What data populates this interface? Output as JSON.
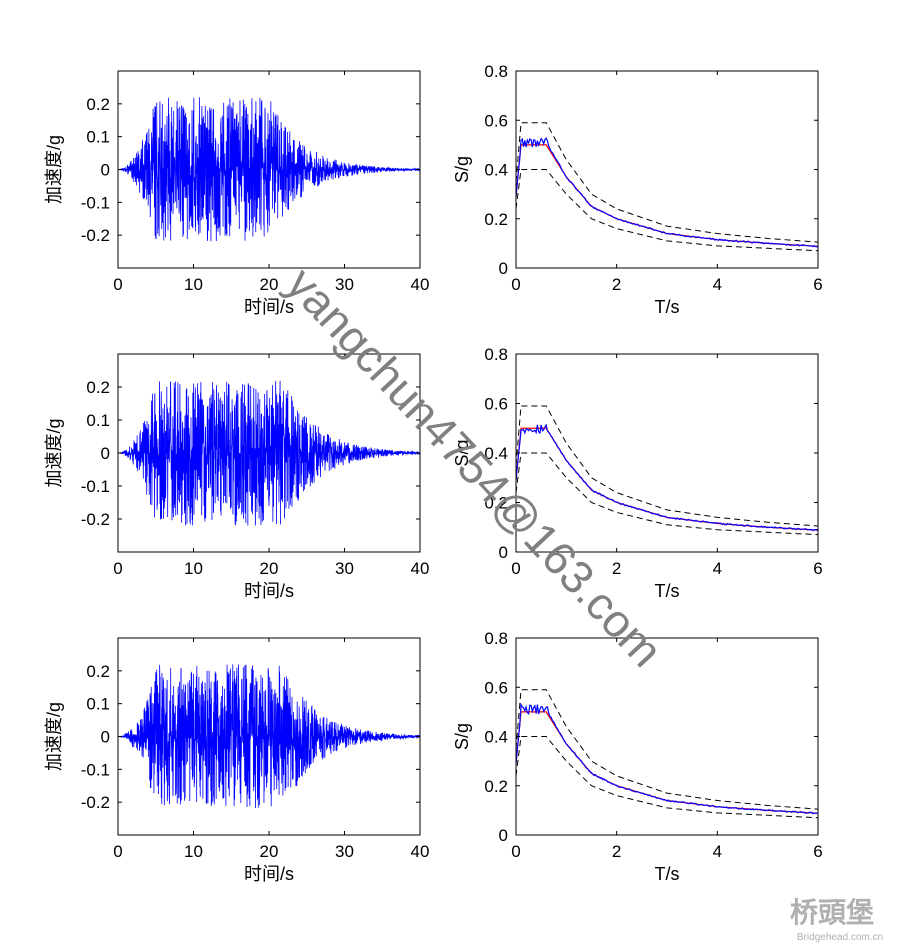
{
  "chart_data": [
    {
      "type": "line",
      "xlabel": "时间/s",
      "ylabel": "加速度/g",
      "xlim": [
        0,
        40
      ],
      "ylim": [
        -0.3,
        0.3
      ],
      "xticks": [
        0,
        10,
        20,
        30,
        40
      ],
      "yticks": [
        -0.2,
        -0.1,
        0,
        0.1,
        0.2
      ],
      "xtick_labels": [
        "0",
        "10",
        "20",
        "30",
        "40"
      ],
      "ytick_labels": [
        "-0.2",
        "-0.1",
        "0",
        "0.1",
        "0.2"
      ],
      "grid": false,
      "series": [
        {
          "color": "#0000ff",
          "peak_abs": 0.22,
          "strong_phase_s": [
            5,
            20
          ],
          "duration_s": 40
        }
      ]
    },
    {
      "type": "line",
      "xlabel": "T/s",
      "ylabel": "S/g",
      "xlim": [
        0,
        6
      ],
      "ylim": [
        0,
        0.8
      ],
      "xticks": [
        0,
        2,
        4,
        6
      ],
      "yticks": [
        0,
        0.2,
        0.4,
        0.6,
        0.8
      ],
      "xtick_labels": [
        "0",
        "2",
        "4",
        "6"
      ],
      "ytick_labels": [
        "0",
        "0.2",
        "0.4",
        "0.6",
        "0.8"
      ],
      "grid": false,
      "series": [
        {
          "style": "dashed",
          "color": "#000000",
          "x": [
            0,
            0.1,
            0.6,
            1,
            1.5,
            2,
            3,
            4,
            5,
            6
          ],
          "y": [
            0.35,
            0.59,
            0.59,
            0.44,
            0.3,
            0.24,
            0.17,
            0.14,
            0.12,
            0.105
          ]
        },
        {
          "style": "dashed",
          "color": "#000000",
          "x": [
            0,
            0.1,
            0.6,
            1,
            1.5,
            2,
            3,
            4,
            5,
            6
          ],
          "y": [
            0.24,
            0.4,
            0.4,
            0.3,
            0.2,
            0.16,
            0.11,
            0.09,
            0.08,
            0.07
          ]
        },
        {
          "style": "solid",
          "color": "#ff0000",
          "x": [
            0,
            0.1,
            0.6,
            1,
            1.5,
            2,
            3,
            4,
            5,
            6
          ],
          "y": [
            0.29,
            0.5,
            0.5,
            0.37,
            0.25,
            0.2,
            0.14,
            0.115,
            0.1,
            0.088
          ]
        },
        {
          "style": "solid",
          "color": "#0000ff",
          "x": [
            0,
            0.1,
            0.6,
            1,
            1.5,
            2,
            3,
            4,
            5,
            6
          ],
          "y": [
            0.29,
            0.51,
            0.51,
            0.37,
            0.25,
            0.2,
            0.14,
            0.115,
            0.1,
            0.088
          ]
        }
      ]
    },
    {
      "type": "line",
      "xlabel": "时间/s",
      "ylabel": "加速度/g",
      "xlim": [
        0,
        40
      ],
      "ylim": [
        -0.3,
        0.3
      ],
      "xticks": [
        0,
        10,
        20,
        30,
        40
      ],
      "yticks": [
        -0.2,
        -0.1,
        0,
        0.1,
        0.2
      ],
      "xtick_labels": [
        "0",
        "10",
        "20",
        "30",
        "40"
      ],
      "ytick_labels": [
        "-0.2",
        "-0.1",
        "0",
        "0.1",
        "0.2"
      ],
      "grid": false,
      "series": [
        {
          "color": "#0000ff",
          "peak_abs": 0.22,
          "strong_phase_s": [
            5,
            22
          ],
          "duration_s": 40
        }
      ]
    },
    {
      "type": "line",
      "xlabel": "T/s",
      "ylabel": "S/g",
      "xlim": [
        0,
        6
      ],
      "ylim": [
        0,
        0.8
      ],
      "xticks": [
        0,
        2,
        4,
        6
      ],
      "yticks": [
        0,
        0.2,
        0.4,
        0.6,
        0.8
      ],
      "xtick_labels": [
        "0",
        "2",
        "4",
        "6"
      ],
      "ytick_labels": [
        "0",
        "0.2",
        "0.4",
        "0.6",
        "0.8"
      ],
      "grid": false,
      "series": [
        {
          "style": "dashed",
          "color": "#000000",
          "x": [
            0,
            0.1,
            0.6,
            1,
            1.5,
            2,
            3,
            4,
            5,
            6
          ],
          "y": [
            0.35,
            0.59,
            0.59,
            0.44,
            0.3,
            0.24,
            0.17,
            0.14,
            0.12,
            0.105
          ]
        },
        {
          "style": "dashed",
          "color": "#000000",
          "x": [
            0,
            0.1,
            0.6,
            1,
            1.5,
            2,
            3,
            4,
            5,
            6
          ],
          "y": [
            0.24,
            0.4,
            0.4,
            0.3,
            0.2,
            0.16,
            0.11,
            0.09,
            0.08,
            0.07
          ]
        },
        {
          "style": "solid",
          "color": "#ff0000",
          "x": [
            0,
            0.1,
            0.6,
            1,
            1.5,
            2,
            3,
            4,
            5,
            6
          ],
          "y": [
            0.29,
            0.5,
            0.5,
            0.37,
            0.25,
            0.2,
            0.14,
            0.115,
            0.1,
            0.088
          ]
        },
        {
          "style": "solid",
          "color": "#0000ff",
          "x": [
            0,
            0.1,
            0.6,
            1,
            1.5,
            2,
            3,
            4,
            5,
            6
          ],
          "y": [
            0.29,
            0.5,
            0.5,
            0.37,
            0.25,
            0.2,
            0.14,
            0.115,
            0.1,
            0.088
          ]
        }
      ]
    },
    {
      "type": "line",
      "xlabel": "时间/s",
      "ylabel": "加速度/g",
      "xlim": [
        0,
        40
      ],
      "ylim": [
        -0.3,
        0.3
      ],
      "xticks": [
        0,
        10,
        20,
        30,
        40
      ],
      "yticks": [
        -0.2,
        -0.1,
        0,
        0.1,
        0.2
      ],
      "xtick_labels": [
        "0",
        "10",
        "20",
        "30",
        "40"
      ],
      "ytick_labels": [
        "-0.2",
        "-0.1",
        "0",
        "0.1",
        "0.2"
      ],
      "grid": false,
      "series": [
        {
          "color": "#0000ff",
          "peak_abs": 0.22,
          "strong_phase_s": [
            5,
            22
          ],
          "duration_s": 40
        }
      ]
    },
    {
      "type": "line",
      "xlabel": "T/s",
      "ylabel": "S/g",
      "xlim": [
        0,
        6
      ],
      "ylim": [
        0,
        0.8
      ],
      "xticks": [
        0,
        2,
        4,
        6
      ],
      "yticks": [
        0,
        0.2,
        0.4,
        0.6,
        0.8
      ],
      "xtick_labels": [
        "0",
        "2",
        "4",
        "6"
      ],
      "ytick_labels": [
        "0",
        "0.2",
        "0.4",
        "0.6",
        "0.8"
      ],
      "grid": false,
      "series": [
        {
          "style": "dashed",
          "color": "#000000",
          "x": [
            0,
            0.1,
            0.6,
            1,
            1.5,
            2,
            3,
            4,
            5,
            6
          ],
          "y": [
            0.35,
            0.59,
            0.59,
            0.44,
            0.3,
            0.24,
            0.17,
            0.14,
            0.12,
            0.105
          ]
        },
        {
          "style": "dashed",
          "color": "#000000",
          "x": [
            0,
            0.1,
            0.6,
            1,
            1.5,
            2,
            3,
            4,
            5,
            6
          ],
          "y": [
            0.24,
            0.4,
            0.4,
            0.3,
            0.2,
            0.16,
            0.11,
            0.09,
            0.08,
            0.07
          ]
        },
        {
          "style": "solid",
          "color": "#ff0000",
          "x": [
            0,
            0.1,
            0.6,
            1,
            1.5,
            2,
            3,
            4,
            5,
            6
          ],
          "y": [
            0.29,
            0.5,
            0.5,
            0.37,
            0.25,
            0.2,
            0.14,
            0.115,
            0.1,
            0.088
          ]
        },
        {
          "style": "solid",
          "color": "#0000ff",
          "x": [
            0,
            0.1,
            0.6,
            1,
            1.5,
            2,
            3,
            4,
            5,
            6
          ],
          "y": [
            0.29,
            0.51,
            0.51,
            0.37,
            0.25,
            0.2,
            0.14,
            0.115,
            0.1,
            0.088
          ]
        }
      ]
    }
  ],
  "watermark": {
    "text": "yangchun4754@163.com",
    "color": "#808080"
  },
  "logo": {
    "chinese": "桥頭堡",
    "site": "Bridgehead.com.cn",
    "color": "#b0b0b0"
  }
}
